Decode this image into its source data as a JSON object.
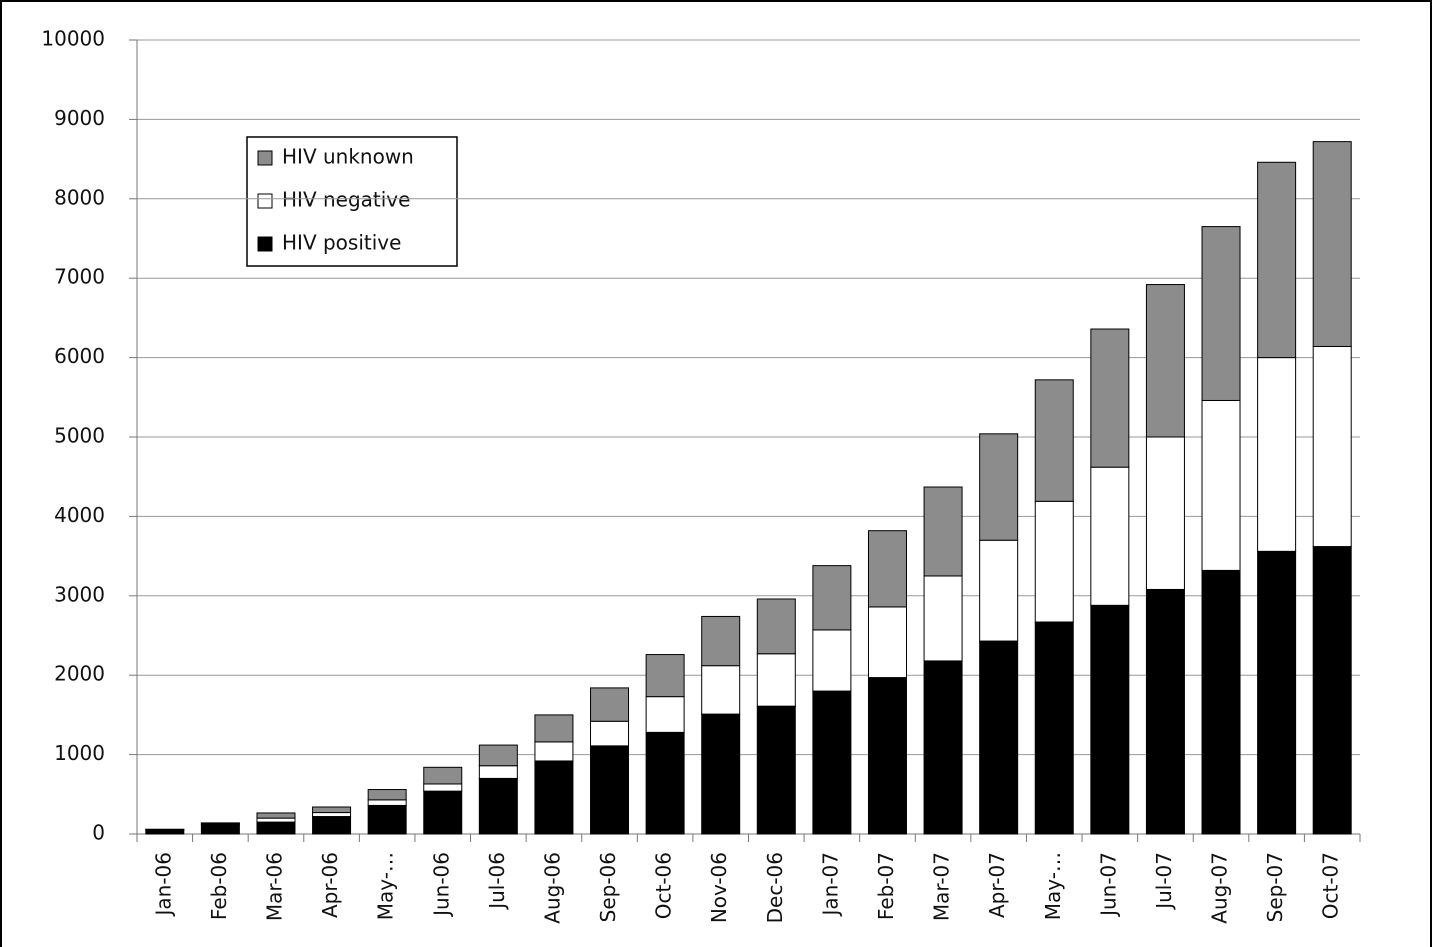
{
  "chart_data": {
    "type": "stacked_bar",
    "categories": [
      "Jan-06",
      "Feb-06",
      "Mar-06",
      "Apr-06",
      "May-…",
      "Jun-06",
      "Jul-06",
      "Aug-06",
      "Sep-06",
      "Oct-06",
      "Nov-06",
      "Dec-06",
      "Jan-07",
      "Feb-07",
      "Mar-07",
      "Apr-07",
      "May-…",
      "Jun-07",
      "Jul-07",
      "Aug-07",
      "Sep-07",
      "Oct-07"
    ],
    "series": [
      {
        "name": "HIV positive",
        "color": "#000000",
        "values": [
          50,
          120,
          150,
          220,
          360,
          540,
          700,
          920,
          1110,
          1280,
          1510,
          1610,
          1800,
          1970,
          2180,
          2430,
          2670,
          2880,
          3080,
          3320,
          3560,
          3620
        ]
      },
      {
        "name": "HIV negative",
        "color": "#ffffff",
        "values": [
          5,
          10,
          50,
          50,
          70,
          90,
          160,
          240,
          310,
          450,
          610,
          660,
          770,
          890,
          1070,
          1270,
          1520,
          1740,
          1920,
          2140,
          2440,
          2520
        ]
      },
      {
        "name": "HIV unknown",
        "color": "#8c8c8c",
        "values": [
          5,
          10,
          65,
          70,
          130,
          210,
          260,
          340,
          420,
          530,
          620,
          690,
          810,
          960,
          1120,
          1340,
          1530,
          1740,
          1920,
          2190,
          2460,
          2580
        ]
      }
    ],
    "ylim": [
      0,
      10000
    ],
    "yticks": [
      0,
      1000,
      2000,
      3000,
      4000,
      5000,
      6000,
      7000,
      8000,
      9000,
      10000
    ],
    "grid": true
  }
}
